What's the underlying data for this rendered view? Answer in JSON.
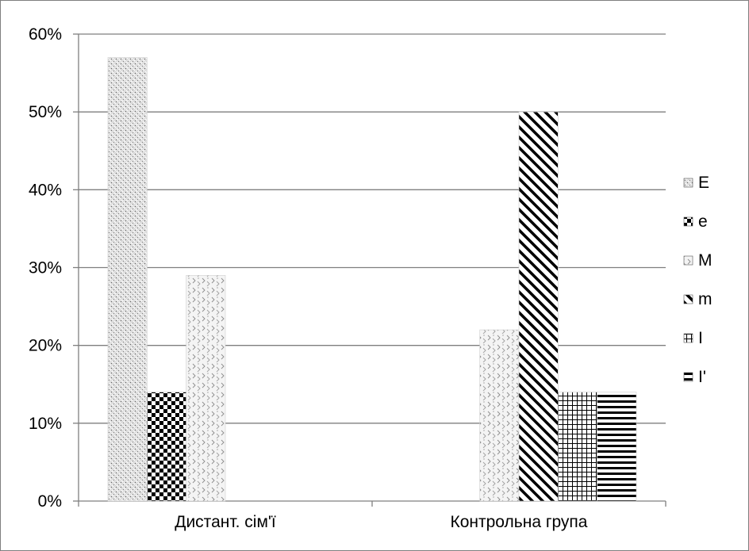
{
  "chart_data": {
    "type": "bar",
    "categories": [
      "Дистант. сім'ї",
      "Контрольна група"
    ],
    "y_tick_labels": [
      "0%",
      "10%",
      "20%",
      "30%",
      "40%",
      "50%",
      "60%"
    ],
    "ylim": [
      0,
      60
    ],
    "y_unit": "%",
    "grid": "horizontal",
    "legend_position": "right",
    "series": [
      {
        "name": "E",
        "pattern": "dots-dense",
        "values": [
          57,
          0
        ]
      },
      {
        "name": "e",
        "pattern": "checker",
        "values": [
          14,
          0
        ]
      },
      {
        "name": "M",
        "pattern": "chevron-dots",
        "values": [
          29,
          22
        ]
      },
      {
        "name": "m",
        "pattern": "diagonal",
        "values": [
          0,
          50
        ]
      },
      {
        "name": "I",
        "pattern": "grid",
        "values": [
          0,
          14
        ]
      },
      {
        "name": "I'",
        "pattern": "horizontal",
        "values": [
          0,
          14
        ]
      }
    ],
    "colors": {
      "gridline": "#7f7f7f",
      "axis": "#7f7f7f",
      "ink": "#000000"
    }
  }
}
